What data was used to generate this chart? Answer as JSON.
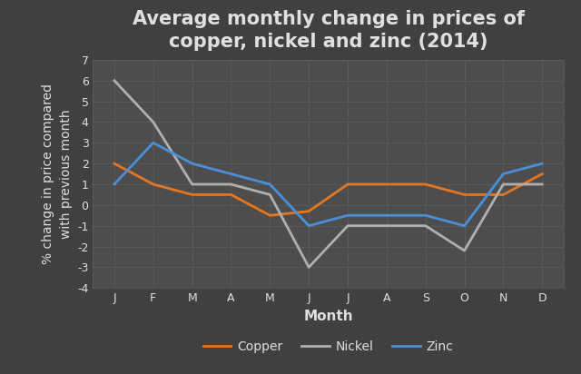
{
  "title": "Average monthly change in prices of\ncopper, nickel and zinc (2014)",
  "xlabel": "Month",
  "ylabel": "% change in price compared\nwith previous month",
  "months": [
    "J",
    "F",
    "M",
    "A",
    "M",
    "J",
    "J",
    "A",
    "S",
    "O",
    "N",
    "D"
  ],
  "copper": [
    2.0,
    1.0,
    0.5,
    0.5,
    -0.5,
    -0.3,
    1.0,
    1.0,
    1.0,
    0.5,
    0.5,
    1.5
  ],
  "nickel": [
    6.0,
    4.0,
    1.0,
    1.0,
    0.5,
    -3.0,
    -1.0,
    -1.0,
    -1.0,
    -2.2,
    1.0,
    1.0
  ],
  "zinc": [
    1.0,
    3.0,
    2.0,
    1.5,
    1.0,
    -1.0,
    -0.5,
    -0.5,
    -0.5,
    -1.0,
    1.5,
    2.0
  ],
  "copper_color": "#e8761e",
  "nickel_color": "#b0b0b0",
  "zinc_color": "#4a90d9",
  "bg_color": "#404040",
  "plot_bg_color": "#4d4d4d",
  "text_color": "#e0e0e0",
  "grid_color": "#5f5f5f",
  "ylim": [
    -4,
    7
  ],
  "yticks": [
    -4,
    -3,
    -2,
    -1,
    0,
    1,
    2,
    3,
    4,
    5,
    6,
    7
  ],
  "linewidth": 2.0,
  "title_fontsize": 15,
  "label_fontsize": 11,
  "tick_fontsize": 9,
  "legend_fontsize": 10
}
